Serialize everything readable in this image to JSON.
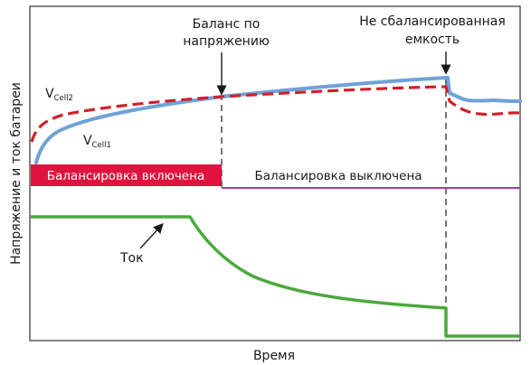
{
  "annotations": {
    "voltage_balance": [
      "Баланс по",
      "напряжению"
    ],
    "unbalanced_capacity": [
      "Не сбалансированная",
      "емкость"
    ]
  },
  "traces": {
    "vcell2": {
      "main": "V",
      "sub": "Cell2"
    },
    "vcell1": {
      "main": "V",
      "sub": "Cell1"
    },
    "current": "Ток"
  },
  "balancing": {
    "on": "Балансировка включена",
    "off": "Балансировка выключена"
  },
  "axes": {
    "x_label": "Время",
    "y_label": "Напряжение и ток батареи"
  },
  "colors": {
    "vcell1": "#6fa2d8",
    "vcell2": "#d0202a",
    "current": "#4aa93c",
    "balancing_on": "#e0133e",
    "balancing_off": "#9b3f9f",
    "frame": "#333333"
  }
}
